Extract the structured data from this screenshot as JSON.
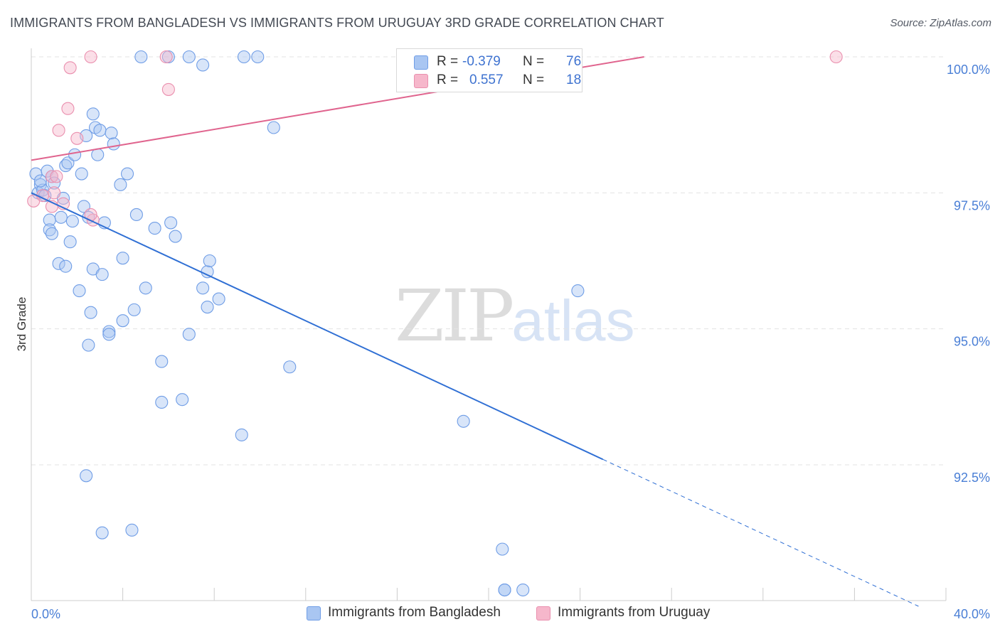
{
  "title": "IMMIGRANTS FROM BANGLADESH VS IMMIGRANTS FROM URUGUAY 3RD GRADE CORRELATION CHART",
  "source": "Source: ZipAtlas.com",
  "watermark": {
    "part1": "ZIP",
    "part2": "atlas"
  },
  "stats": [
    {
      "r_label": "R =",
      "r_value": "-0.379",
      "n_label": "N =",
      "n_value": "76",
      "color": "#a9c6f2"
    },
    {
      "r_label": "R =",
      "r_value": "0.557",
      "n_label": "N =",
      "n_value": "18",
      "color": "#f6b7cb"
    }
  ],
  "legend": [
    {
      "label": "Immigrants from Bangladesh",
      "color": "#a9c6f2"
    },
    {
      "label": "Immigrants from Uruguay",
      "color": "#f6b7cb"
    }
  ],
  "colors": {
    "blue_point_fill": "#a9c6f2",
    "blue_point_stroke": "#6f9de6",
    "blue_line": "#2f6fd4",
    "pink_point_fill": "#f6b7cb",
    "pink_point_stroke": "#ea8fae",
    "pink_line": "#e0648e",
    "axis_label": "#4a7fd6",
    "grid": "#e3e3e3"
  },
  "chart_data": {
    "type": "scatter",
    "title": "IMMIGRANTS FROM BANGLADESH VS IMMIGRANTS FROM URUGUAY 3RD GRADE CORRELATION CHART",
    "xlabel": "",
    "ylabel": "3rd Grade",
    "xlim": [
      0,
      40
    ],
    "ylim": [
      90.0,
      100.2
    ],
    "x_tick_labels": [
      "0.0%",
      "40.0%"
    ],
    "y_ticks": [
      92.5,
      95.0,
      97.5,
      100.0
    ],
    "y_tick_labels": [
      "92.5%",
      "95.0%",
      "97.5%",
      "100.0%"
    ],
    "grid": true,
    "series": [
      {
        "name": "Immigrants from Bangladesh",
        "points": [
          [
            0.2,
            97.85
          ],
          [
            0.3,
            97.5
          ],
          [
            0.4,
            97.65
          ],
          [
            0.5,
            97.55
          ],
          [
            0.6,
            97.45
          ],
          [
            0.4,
            97.72
          ],
          [
            0.7,
            97.9
          ],
          [
            0.9,
            97.8
          ],
          [
            1.0,
            97.68
          ],
          [
            1.4,
            97.4
          ],
          [
            0.8,
            97.0
          ],
          [
            0.8,
            96.82
          ],
          [
            0.9,
            96.75
          ],
          [
            1.3,
            97.05
          ],
          [
            1.8,
            96.98
          ],
          [
            1.7,
            96.6
          ],
          [
            1.2,
            96.2
          ],
          [
            1.5,
            96.15
          ],
          [
            2.3,
            97.25
          ],
          [
            2.5,
            97.05
          ],
          [
            2.2,
            97.85
          ],
          [
            1.5,
            98.0
          ],
          [
            1.6,
            98.05
          ],
          [
            1.9,
            98.2
          ],
          [
            2.4,
            98.55
          ],
          [
            2.8,
            98.7
          ],
          [
            3.0,
            98.65
          ],
          [
            2.7,
            98.95
          ],
          [
            2.9,
            98.2
          ],
          [
            3.5,
            98.6
          ],
          [
            3.6,
            98.4
          ],
          [
            4.2,
            97.85
          ],
          [
            3.9,
            97.65
          ],
          [
            3.2,
            96.95
          ],
          [
            4.6,
            97.1
          ],
          [
            5.4,
            96.85
          ],
          [
            6.1,
            96.95
          ],
          [
            6.3,
            96.7
          ],
          [
            4.0,
            96.3
          ],
          [
            2.7,
            96.1
          ],
          [
            3.1,
            96.0
          ],
          [
            5.0,
            95.75
          ],
          [
            4.5,
            95.35
          ],
          [
            4.0,
            95.15
          ],
          [
            2.6,
            95.3
          ],
          [
            2.1,
            95.7
          ],
          [
            2.5,
            94.7
          ],
          [
            3.4,
            94.95
          ],
          [
            3.4,
            94.9
          ],
          [
            5.7,
            94.4
          ],
          [
            5.7,
            93.65
          ],
          [
            6.6,
            93.7
          ],
          [
            6.9,
            94.9
          ],
          [
            7.5,
            95.75
          ],
          [
            7.7,
            95.4
          ],
          [
            7.7,
            96.05
          ],
          [
            7.8,
            96.25
          ],
          [
            8.2,
            95.55
          ],
          [
            9.2,
            93.05
          ],
          [
            11.3,
            94.3
          ],
          [
            2.4,
            92.3
          ],
          [
            3.1,
            91.25
          ],
          [
            4.4,
            91.3
          ],
          [
            4.8,
            100.0
          ],
          [
            6.0,
            100.0
          ],
          [
            6.9,
            100.0
          ],
          [
            7.5,
            99.85
          ],
          [
            9.3,
            100.0
          ],
          [
            9.9,
            100.0
          ],
          [
            10.6,
            98.7
          ],
          [
            18.9,
            93.3
          ],
          [
            23.9,
            95.7
          ],
          [
            20.7,
            90.2
          ],
          [
            20.7,
            90.2
          ],
          [
            21.5,
            90.2
          ],
          [
            20.6,
            90.95
          ]
        ],
        "trend": {
          "x": [
            0.0,
            25.0
          ],
          "y": [
            97.5,
            92.6
          ],
          "dashed_extension": {
            "x": [
              25.0,
              38.8
            ],
            "y": [
              92.6,
              89.9
            ]
          }
        }
      },
      {
        "name": "Immigrants from Uruguay",
        "points": [
          [
            0.1,
            97.35
          ],
          [
            0.5,
            97.45
          ],
          [
            0.9,
            97.25
          ],
          [
            0.9,
            97.8
          ],
          [
            1.0,
            97.5
          ],
          [
            1.1,
            97.8
          ],
          [
            1.4,
            97.3
          ],
          [
            2.7,
            97.0
          ],
          [
            2.6,
            97.1
          ],
          [
            1.2,
            98.65
          ],
          [
            1.6,
            99.05
          ],
          [
            2.0,
            98.5
          ],
          [
            1.7,
            99.8
          ],
          [
            2.6,
            100.0
          ],
          [
            5.9,
            100.0
          ],
          [
            6.0,
            99.4
          ],
          [
            23.8,
            100.0
          ],
          [
            35.2,
            100.0
          ]
        ],
        "trend": {
          "x": [
            0.0,
            26.8
          ],
          "y": [
            98.1,
            100.0
          ]
        }
      }
    ]
  }
}
